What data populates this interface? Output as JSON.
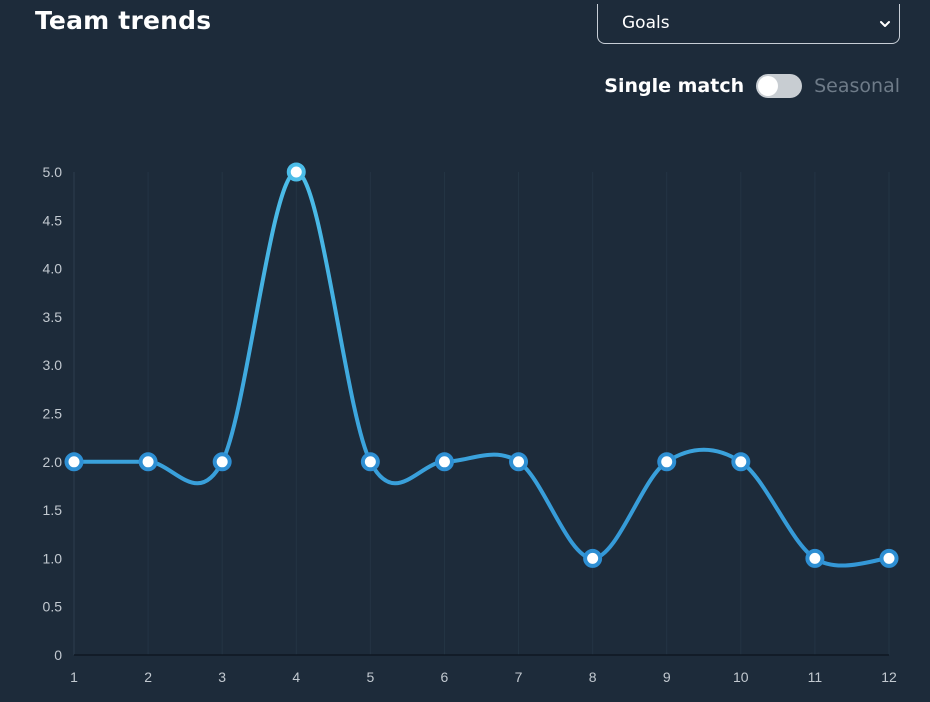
{
  "header": {
    "title": "Team trends"
  },
  "metric_select": {
    "value": "Goals",
    "icon": "chevron-down-icon"
  },
  "mode_toggle": {
    "left_label": "Single match",
    "right_label": "Seasonal",
    "state": "single match selected"
  },
  "colors": {
    "background": "#1d2b3a",
    "line": "#2e8fd3",
    "line_highlight": "#4cbde8",
    "marker_fill": "#ffffff"
  },
  "chart_data": {
    "type": "line",
    "x": [
      1,
      2,
      3,
      4,
      5,
      6,
      7,
      8,
      9,
      10,
      11,
      12
    ],
    "series": [
      {
        "values": [
          2,
          2,
          2,
          5,
          2,
          2,
          2,
          1,
          2,
          2,
          1,
          1
        ]
      }
    ],
    "x_tick_labels": [
      "1",
      "2",
      "3",
      "4",
      "5",
      "6",
      "7",
      "8",
      "9",
      "10",
      "11",
      "12"
    ],
    "y_tick_labels": [
      "0",
      "0.5",
      "1.0",
      "1.5",
      "2.0",
      "2.5",
      "3.0",
      "3.5",
      "4.0",
      "4.5",
      "5.0"
    ],
    "ylim": [
      0,
      5
    ],
    "xlim": [
      1,
      12
    ],
    "grid": "vertical",
    "smooth": true
  }
}
